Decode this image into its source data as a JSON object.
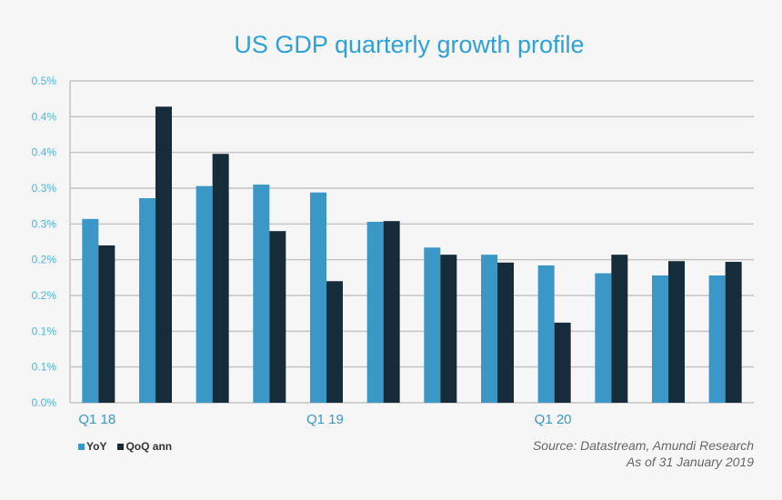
{
  "chart_data": {
    "type": "bar",
    "title": "US GDP quarterly growth profile",
    "categories": [
      "Q1 18",
      "",
      "",
      "",
      "Q1 19",
      "",
      "",
      "",
      "Q1 20",
      "",
      "",
      ""
    ],
    "series": [
      {
        "name": "YoY",
        "color": "#3a97c6",
        "values": [
          0.257,
          0.286,
          0.303,
          0.305,
          0.294,
          0.253,
          0.217,
          0.207,
          0.192,
          0.181,
          0.178,
          0.178
        ]
      },
      {
        "name": "QoQ ann",
        "color": "#162c3b",
        "values": [
          0.22,
          0.414,
          0.348,
          0.24,
          0.17,
          0.254,
          0.207,
          0.196,
          0.112,
          0.207,
          0.198,
          0.197
        ]
      }
    ],
    "yticks": [
      "0.0%",
      "0.1%",
      "0.1%",
      "0.2%",
      "0.2%",
      "0.3%",
      "0.3%",
      "0.4%",
      "0.4%",
      "0.5%"
    ],
    "ytick_values": [
      0,
      0.05,
      0.1,
      0.15,
      0.2,
      0.25,
      0.3,
      0.35,
      0.4,
      0.45
    ],
    "ylim": [
      0,
      0.45
    ],
    "grid": true,
    "legend": "bottom-left",
    "source": "Source: Datastream, Amundi Research",
    "date_note": "As of 31 January 2019"
  }
}
